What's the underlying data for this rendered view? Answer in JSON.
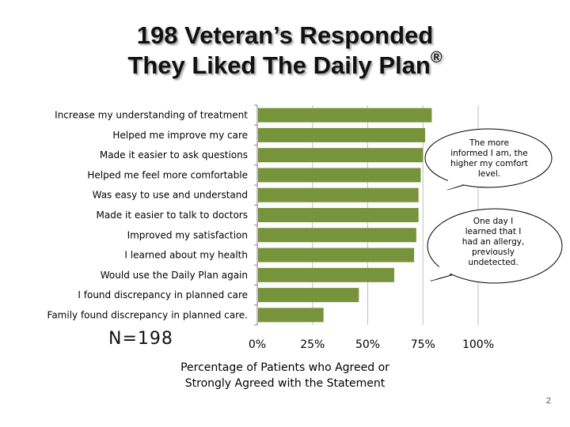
{
  "slide": {
    "title_line1": "198 Veteran’s Responded",
    "title_line2": "They Liked The Daily Plan",
    "title_mark": "®",
    "n_label": "N=198",
    "page_number": "2"
  },
  "callouts": [
    {
      "text": "The more informed I am, the higher my comfort level."
    },
    {
      "text": "One day I learned that I had an allergy, previously undetected."
    }
  ],
  "chart_data": {
    "type": "bar",
    "orientation": "horizontal",
    "categories": [
      "Increase my understanding of treatment",
      "Helped me improve my care",
      "Made it easier to ask questions",
      "Helped me feel more comfortable",
      "Was easy to use and understand",
      "Made it easier to talk to doctors",
      "Improved my satisfaction",
      "I learned about my health",
      "Would use the Daily Plan again",
      "I found discrepancy in planned care",
      "Family found discrepancy in planned care."
    ],
    "values": [
      79,
      76,
      75,
      74,
      73,
      73,
      72,
      71,
      62,
      46,
      30
    ],
    "xlabel_line1": "Percentage of Patients who Agreed or",
    "xlabel_line2": "Strongly Agreed with the Statement",
    "xlim": [
      0,
      100
    ],
    "ticks": [
      "0%",
      "25%",
      "50%",
      "75%",
      "100%"
    ],
    "tick_values": [
      0,
      25,
      50,
      75,
      100
    ],
    "grid": true,
    "bar_color": "#77933c"
  }
}
